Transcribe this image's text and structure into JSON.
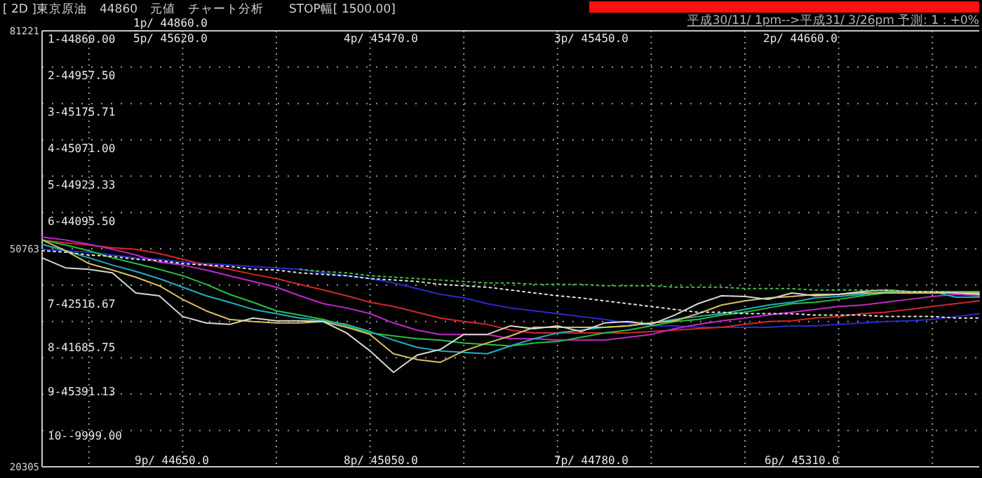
{
  "chart_data": {
    "type": "line",
    "title": "[ 2D ]東京原油　44860　元値　チャート分析　　STOP幅[ 1500.00]",
    "subtitle": "平成30/11/ 1pm-->平成31/ 3/26pm 予測: 1 : +0%",
    "annotations": [
      "1-44860.00",
      "2-44957.50",
      "3-45175.71",
      "4-45071.00",
      "5-44923.33",
      "6-44095.50",
      "7-42516.67",
      "8-41685.75",
      "9-45391.13",
      "10--9999.00",
      "1p/ 44860.0",
      "5p/ 45620.0",
      "4p/ 45470.0",
      "3p/ 45450.0",
      "2p/ 44660.0",
      "9p/ 44650.0",
      "8p/ 45050.0",
      "7p/ 44780.0",
      "6p/ 45310.0"
    ],
    "categories": [
      null,
      null,
      null,
      null,
      null,
      null,
      null,
      null,
      null,
      null,
      null,
      null,
      null,
      null,
      null,
      null,
      null,
      null,
      null,
      null,
      null,
      null,
      null,
      null,
      null,
      null,
      null,
      null,
      null,
      null,
      null,
      null,
      null,
      null,
      null,
      null,
      null,
      null,
      null,
      null,
      null
    ],
    "ylim": [
      20305,
      81221
    ],
    "yticks": [
      81221,
      50763,
      20305
    ],
    "grid": true,
    "marker": "none",
    "series": [
      {
        "color": "#2a2ad0",
        "values": [
          50700,
          50500,
          50300,
          49900,
          49500,
          49300,
          48900,
          48700,
          48500,
          48300,
          48100,
          47900,
          47400,
          47000,
          46600,
          46000,
          45200,
          44400,
          43900,
          43100,
          42500,
          42100,
          41700,
          41300,
          40900,
          40400,
          40000,
          40000,
          39800,
          39800,
          39800,
          39800,
          40000,
          40000,
          40200,
          40400,
          40600,
          40700,
          40900,
          41300,
          41700
        ]
      },
      {
        "color": "#d02828",
        "values": [
          52000,
          51600,
          51300,
          50900,
          50700,
          50100,
          49300,
          48500,
          47900,
          47200,
          46600,
          45800,
          45000,
          44200,
          43300,
          42700,
          41900,
          41100,
          40600,
          40200,
          39400,
          39000,
          39000,
          39000,
          39000,
          39000,
          39200,
          39400,
          39600,
          39800,
          40200,
          40600,
          40700,
          41100,
          41300,
          41700,
          41900,
          42300,
          42700,
          43100,
          43500
        ]
      },
      {
        "color": "#c028c8",
        "values": [
          52400,
          52000,
          51400,
          50700,
          49900,
          48900,
          48500,
          47800,
          47000,
          46200,
          45400,
          44200,
          43100,
          42500,
          41700,
          40400,
          39400,
          38800,
          38800,
          38800,
          38200,
          38200,
          38000,
          38000,
          38000,
          38400,
          38800,
          39600,
          40200,
          40700,
          41100,
          41500,
          41900,
          42300,
          42700,
          42900,
          43300,
          43700,
          44100,
          44400,
          44200
        ]
      },
      {
        "color": "#28c040",
        "values": [
          52000,
          51300,
          50500,
          49500,
          48700,
          47900,
          47000,
          45800,
          44400,
          43300,
          42100,
          41500,
          40900,
          40000,
          39000,
          38600,
          38200,
          38000,
          37600,
          37400,
          37200,
          37600,
          37800,
          38400,
          39000,
          39400,
          40000,
          40600,
          40900,
          41500,
          41900,
          42500,
          43100,
          43300,
          43700,
          44200,
          44600,
          44600,
          44800,
          44800,
          44800
        ]
      },
      {
        "color": "#20b0c0",
        "values": [
          51400,
          50500,
          49500,
          48500,
          47600,
          46600,
          45400,
          44200,
          43300,
          42300,
          41700,
          41100,
          40700,
          40200,
          39200,
          38000,
          37000,
          36500,
          36300,
          36100,
          37200,
          38200,
          39000,
          39400,
          39800,
          40000,
          40400,
          40900,
          41300,
          41700,
          42300,
          42900,
          43300,
          43900,
          44100,
          44400,
          44800,
          44800,
          44800,
          44000,
          44000
        ]
      },
      {
        "color": "#d8c060",
        "values": [
          52000,
          50500,
          48700,
          47800,
          46800,
          45600,
          43700,
          42100,
          40900,
          40600,
          40400,
          40400,
          40600,
          39800,
          38800,
          36100,
          35300,
          34900,
          36500,
          37600,
          38600,
          39800,
          39800,
          39800,
          39800,
          40000,
          40400,
          40700,
          41700,
          42900,
          43500,
          43900,
          44100,
          44400,
          44400,
          44600,
          44600,
          44600,
          44600,
          44600,
          44600
        ]
      },
      {
        "color": "#d8d8d0",
        "values": [
          49500,
          48100,
          47900,
          47400,
          44600,
          44200,
          41300,
          40400,
          40200,
          41100,
          40700,
          40700,
          40600,
          39000,
          36500,
          33500,
          35900,
          36700,
          38800,
          38800,
          40000,
          39600,
          40000,
          39200,
          40400,
          40600,
          40200,
          41500,
          43100,
          44200,
          44100,
          43700,
          44600,
          44200,
          44400,
          44800,
          45000,
          44800,
          44800,
          44600,
          44400
        ]
      },
      {
        "color": "#e0e0e0",
        "line_style": "dotted",
        "values": [
          50500,
          50300,
          49900,
          49700,
          49300,
          49100,
          48700,
          48500,
          48300,
          47900,
          47800,
          47400,
          47200,
          47000,
          46600,
          46400,
          46200,
          45800,
          45600,
          45400,
          45000,
          44600,
          44200,
          43900,
          43500,
          43100,
          42700,
          42300,
          41900,
          41900,
          41700,
          41700,
          41700,
          41500,
          41500,
          41500,
          41300,
          41300,
          41300,
          41100,
          41100
        ]
      },
      {
        "color": "#40c040",
        "line_style": "dotted",
        "values": [
          null,
          null,
          null,
          null,
          null,
          null,
          null,
          null,
          null,
          null,
          null,
          47900,
          47600,
          47400,
          47000,
          46800,
          46600,
          46400,
          46200,
          46000,
          46000,
          45800,
          45800,
          45800,
          45600,
          45600,
          45600,
          45400,
          45400,
          45400,
          45200,
          45200,
          45200,
          45000,
          45000,
          45000,
          45000,
          44800,
          44800,
          44800,
          44800
        ]
      }
    ]
  }
}
